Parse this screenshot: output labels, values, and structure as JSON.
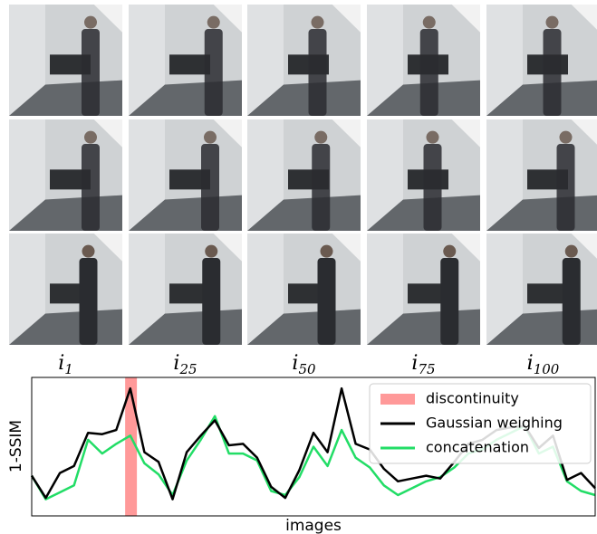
{
  "image_grid": {
    "column_labels": [
      {
        "base": "i",
        "subscript": "1"
      },
      {
        "base": "i",
        "subscript": "25"
      },
      {
        "base": "i",
        "subscript": "50"
      },
      {
        "base": "i",
        "subscript": "75"
      },
      {
        "base": "i",
        "subscript": "100"
      }
    ]
  },
  "chart_data": {
    "type": "line",
    "xlabel": "images",
    "ylabel": "1-SSIM",
    "x": [
      0,
      3,
      6,
      9,
      12,
      15,
      18,
      21,
      24,
      27,
      30,
      33,
      36,
      39,
      42,
      45,
      48,
      51,
      54,
      57,
      60,
      63,
      66,
      69,
      72,
      75,
      78,
      81,
      84,
      87,
      90,
      93,
      96,
      99,
      102,
      105,
      108,
      111,
      114,
      117,
      120
    ],
    "xlim": [
      0,
      120
    ],
    "ylim": [
      0,
      1
    ],
    "span": {
      "name": "discontinuity",
      "color": "#ff9999",
      "x": [
        19.9,
        22.4
      ]
    },
    "series": [
      {
        "name": "Gaussian weighing",
        "color": "#000000",
        "values": [
          0.29,
          0.13,
          0.31,
          0.36,
          0.6,
          0.59,
          0.62,
          0.92,
          0.46,
          0.39,
          0.12,
          0.46,
          0.58,
          0.69,
          0.51,
          0.52,
          0.42,
          0.21,
          0.13,
          0.33,
          0.6,
          0.46,
          0.92,
          0.52,
          0.48,
          0.34,
          0.25,
          0.27,
          0.29,
          0.27,
          0.39,
          0.52,
          0.55,
          0.62,
          0.64,
          0.65,
          0.49,
          0.58,
          0.26,
          0.31,
          0.2
        ]
      },
      {
        "name": "concatenation",
        "color": "#22dd66",
        "values": [
          0.29,
          0.12,
          0.17,
          0.22,
          0.55,
          0.45,
          0.52,
          0.58,
          0.38,
          0.3,
          0.15,
          0.4,
          0.55,
          0.72,
          0.45,
          0.45,
          0.4,
          0.18,
          0.15,
          0.28,
          0.5,
          0.36,
          0.62,
          0.42,
          0.35,
          0.22,
          0.15,
          0.2,
          0.25,
          0.28,
          0.35,
          0.45,
          0.48,
          0.55,
          0.6,
          0.65,
          0.45,
          0.5,
          0.25,
          0.18,
          0.15
        ]
      }
    ],
    "legend": "upper right"
  }
}
